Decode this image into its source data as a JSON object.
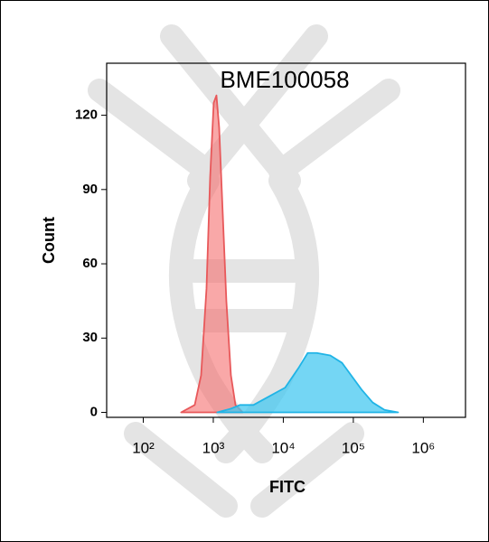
{
  "chart_data": {
    "type": "area",
    "title": "BME100058",
    "x_label": "FITC",
    "y_label": "Count",
    "x_scale": "log",
    "xlim": [
      30,
      4000000
    ],
    "ylim": [
      -2,
      141
    ],
    "xticks": [
      {
        "value": 100,
        "label": "10²"
      },
      {
        "value": 1000,
        "label": "10³"
      },
      {
        "value": 10000,
        "label": "10⁴"
      },
      {
        "value": 100000,
        "label": "10⁵"
      },
      {
        "value": 1000000,
        "label": "10⁶"
      }
    ],
    "yticks": [
      0,
      30,
      60,
      90,
      120
    ],
    "series": [
      {
        "color": "#e8585a",
        "fill": "rgba(245,110,110,0.6)",
        "x": [
          347,
          543,
          670,
          800,
          902,
          1014,
          1109,
          1213,
          1366,
          1537,
          1785,
          2072,
          2625
        ],
        "values": [
          0,
          3,
          15,
          50,
          95,
          125,
          128,
          115,
          80,
          45,
          15,
          3,
          0
        ]
      },
      {
        "color": "#20b4e6",
        "fill": "rgba(70,200,240,0.75)",
        "x": [
          1139,
          1785,
          2400,
          3750,
          5860,
          10620,
          16560,
          22300,
          30000,
          46900,
          69000,
          98600,
          133000,
          189000,
          279000,
          436000
        ],
        "values": [
          0,
          1.5,
          3,
          3,
          6,
          10,
          18,
          24,
          24,
          23,
          20,
          14,
          9,
          4,
          1,
          0
        ]
      }
    ]
  }
}
